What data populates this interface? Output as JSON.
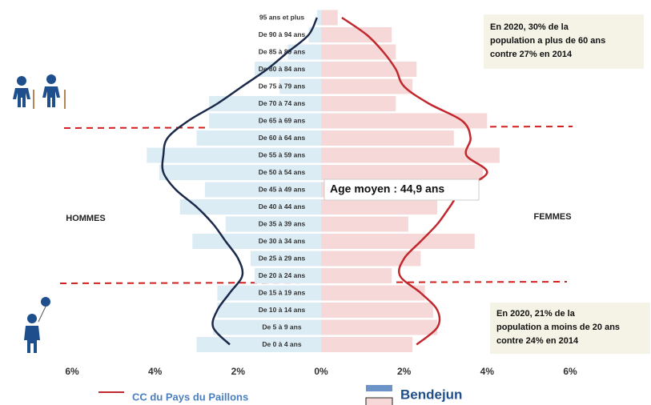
{
  "chart_data": {
    "type": "pyramid",
    "categories": [
      "95 ans et plus",
      "De 90 à 94 ans",
      "De 85 à 89 ans",
      "De 80 à 84 ans",
      "De 75 à 79 ans",
      "De 70 à 74 ans",
      "De 65 à 69 ans",
      "De 60 à 64 ans",
      "De 55 à 59 ans",
      "De 50 à 54 ans",
      "De 45 à 49 ans",
      "De 40 à 44 ans",
      "De 35 à 39 ans",
      "De 30 à 34 ans",
      "De 25 à 29 ans",
      "De 20 à 24 ans",
      "De 15 à 19 ans",
      "De 10 à 14 ans",
      "De 5 à 9 ans",
      "De 0 à 4 ans"
    ],
    "left_label": "HOMMES",
    "right_label": "FEMMES",
    "series": [
      {
        "name": "Bendejun",
        "style": "bar",
        "men_color": "#dcecf4",
        "women_color": "#f7d8d8",
        "men": [
          0.1,
          0.3,
          0.8,
          1.6,
          1.0,
          2.7,
          2.7,
          3.0,
          4.2,
          3.9,
          2.8,
          3.4,
          2.3,
          3.1,
          1.7,
          1.6,
          2.5,
          2.5,
          2.6,
          3.0
        ],
        "women": [
          0.4,
          1.7,
          1.8,
          2.3,
          2.2,
          1.8,
          4.0,
          3.2,
          4.3,
          3.9,
          2.8,
          2.8,
          2.1,
          3.7,
          2.4,
          1.7,
          2.5,
          2.7,
          2.8,
          2.2
        ]
      },
      {
        "name": "CC du Pays du Paillons",
        "style": "line",
        "men_color": "#1b2a4a",
        "women_color": "#c0282d",
        "men": [
          0.1,
          0.3,
          0.8,
          1.3,
          1.9,
          2.5,
          3.2,
          3.7,
          3.8,
          3.8,
          3.5,
          3.0,
          2.6,
          2.3,
          2.0,
          1.9,
          2.2,
          2.5,
          2.6,
          2.2
        ],
        "women": [
          0.5,
          1.1,
          1.5,
          1.8,
          2.0,
          2.6,
          3.4,
          3.6,
          3.5,
          4.0,
          3.4,
          3.1,
          2.8,
          2.4,
          2.0,
          1.9,
          2.4,
          2.8,
          2.8,
          2.3
        ]
      }
    ],
    "xlim": [
      -6,
      6
    ],
    "xticks": [
      {
        "value": -6,
        "label": "6%"
      },
      {
        "value": -4,
        "label": "4%"
      },
      {
        "value": -2,
        "label": "2%"
      },
      {
        "value": 0,
        "label": "0%"
      },
      {
        "value": 2,
        "label": "2%"
      },
      {
        "value": 4,
        "label": "4%"
      },
      {
        "value": 6,
        "label": "6%"
      }
    ],
    "average_label": "Age moyen : 44,9 ans",
    "annotations": [
      {
        "lines": [
          "En 2020, 30% de la",
          "population a plus de 60 ans",
          "contre 27% en 2014"
        ]
      },
      {
        "lines": [
          "En 2020, 21% de la",
          "population a moins de 20 ans",
          "contre 24% en 2014"
        ]
      }
    ]
  }
}
